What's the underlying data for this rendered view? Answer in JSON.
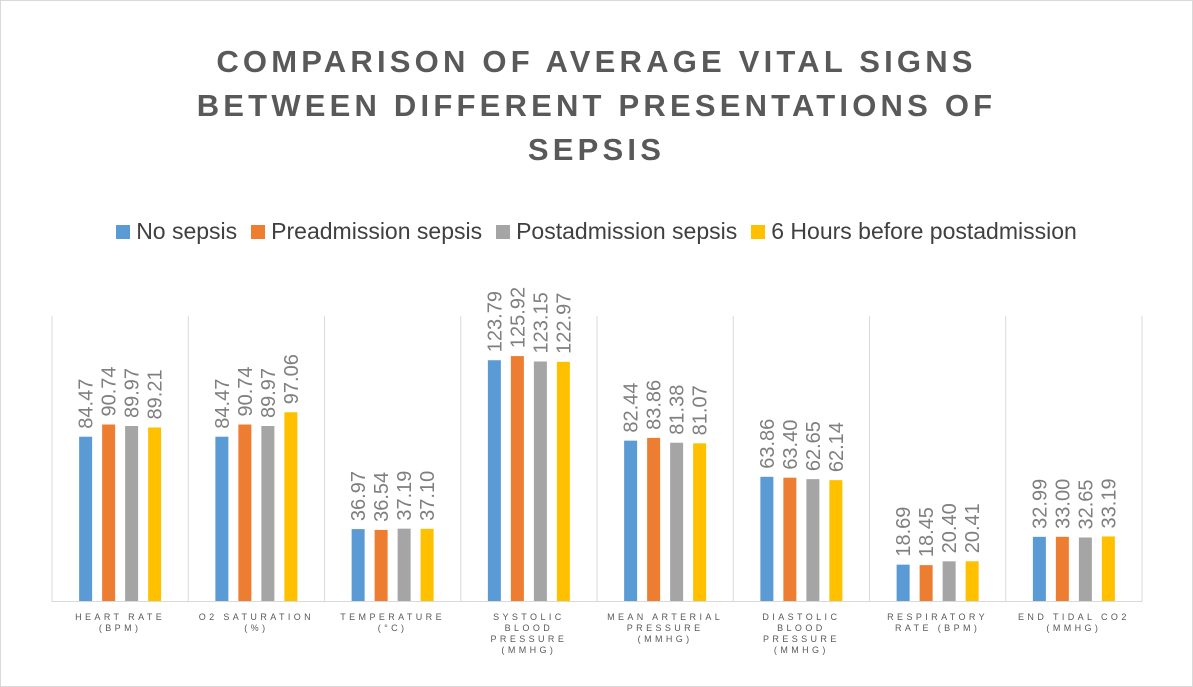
{
  "chart_data": {
    "type": "bar",
    "title": "COMPARISON OF AVERAGE VITAL SIGNS BETWEEN DIFFERENT PRESENTATIONS OF SEPSIS",
    "categories": [
      [
        "HEART RATE",
        "(BPM)"
      ],
      [
        "O2 SATURATION",
        "(%)"
      ],
      [
        "TEMPERATURE",
        "(°C)"
      ],
      [
        "SYSTOLIC",
        "BLOOD",
        "PRESSURE",
        "(MMHG)"
      ],
      [
        "MEAN ARTERIAL",
        "PRESSURE",
        "(MMHG)"
      ],
      [
        "DIASTOLIC",
        "BLOOD",
        "PRESSURE",
        "(MMHG)"
      ],
      [
        "RESPIRATORY",
        "RATE (BPM)"
      ],
      [
        "END TIDAL CO2",
        "(MMHG)"
      ]
    ],
    "series": [
      {
        "name": "No sepsis",
        "color": "#5b9bd5",
        "values": [
          84.47,
          84.47,
          36.97,
          123.79,
          82.44,
          63.86,
          18.69,
          32.99
        ]
      },
      {
        "name": "Preadmission sepsis",
        "color": "#ed7d31",
        "values": [
          90.74,
          90.74,
          36.54,
          125.92,
          83.86,
          63.4,
          18.45,
          33.0
        ]
      },
      {
        "name": "Postadmission sepsis",
        "color": "#a5a5a5",
        "values": [
          89.97,
          89.97,
          37.19,
          123.15,
          81.38,
          62.65,
          20.4,
          32.65
        ]
      },
      {
        "name": "6 Hours before postadmission",
        "color": "#ffc000",
        "values": [
          89.21,
          97.06,
          37.1,
          122.97,
          81.07,
          62.14,
          20.41,
          33.19
        ]
      }
    ],
    "ylim": [
      0,
      140
    ],
    "grid": false,
    "legend_position": "top",
    "data_labels": true
  }
}
